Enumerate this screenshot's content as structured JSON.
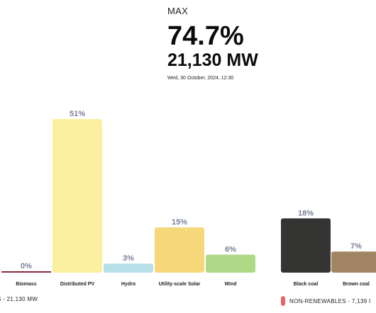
{
  "header": {
    "label": "MAX",
    "percent": "74.7%",
    "mw": "21,130 MW",
    "timestamp": "Wed, 30 October, 2024, 12:30"
  },
  "footer": {
    "renewables": "S - 21,130 MW",
    "nonrenewables": "NON-RENEWABLES - 7,139 I"
  },
  "colors": {
    "Biomass": "#8b2a3c",
    "Distributed PV": "#fbf0a0",
    "Hydro": "#b7dfea",
    "Utility-scale Solar": "#f6d77a",
    "Wind": "#afd987",
    "Black coal": "#343533",
    "Brown coal": "#a18463",
    "nonrenewables_swatch": "#e26a62"
  },
  "chart_data": {
    "type": "bar",
    "categories": [
      "Biomass",
      "Distributed PV",
      "Hydro",
      "Utility-scale Solar",
      "Wind",
      "Black coal",
      "Brown coal"
    ],
    "values": [
      0,
      51,
      3,
      15,
      6,
      18,
      7
    ],
    "labels": [
      "0%",
      "51%",
      "3%",
      "15%",
      "6%",
      "18%",
      "7%"
    ],
    "groups": [
      "renewables",
      "renewables",
      "renewables",
      "renewables",
      "renewables",
      "non-renewables",
      "non-renewables"
    ],
    "ylim": [
      0,
      51
    ],
    "grid": false
  }
}
